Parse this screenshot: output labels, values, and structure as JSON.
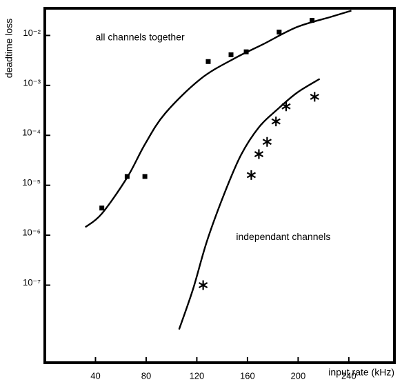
{
  "chart_data": {
    "type": "scatter",
    "y_label": "deadtime loss",
    "x_label": "input  rate (kHz)",
    "xlim": [
      0,
      276
    ],
    "ylim": [
      2.8e-09,
      0.035
    ],
    "y_scale": "log",
    "xticks": [
      40,
      80,
      120,
      160,
      200,
      240
    ],
    "yticks": [
      {
        "value": 0.01,
        "label": "10⁻²"
      },
      {
        "value": 0.001,
        "label": "10⁻³"
      },
      {
        "value": 0.0001,
        "label": "10⁻⁴"
      },
      {
        "value": 1e-05,
        "label": "10⁻⁵"
      },
      {
        "value": 1e-06,
        "label": "10⁻⁶"
      },
      {
        "value": 1e-07,
        "label": "10⁻⁷"
      }
    ],
    "annotations": [
      {
        "text": "all channels together",
        "x": 40,
        "y": 0.009
      },
      {
        "text": "independant channels",
        "x": 151,
        "y": 9e-07
      }
    ],
    "series": [
      {
        "marker": "square",
        "color": "#000000",
        "x": [
          45,
          65,
          79,
          129,
          147,
          159,
          185,
          211
        ],
        "values": [
          3.5e-06,
          1.5e-05,
          1.5e-05,
          0.003,
          0.0041,
          0.0047,
          0.0117,
          0.02
        ]
      },
      {
        "marker": "star",
        "color": "#000000",
        "x": [
          125,
          163,
          169,
          175.5,
          182.5,
          190.5,
          213
        ],
        "values": [
          1e-07,
          1.6e-05,
          4.2e-05,
          7.4e-05,
          0.00019,
          0.00038,
          0.00059
        ]
      },
      {
        "marker": "line",
        "color": "#000000",
        "x": [
          32,
          45,
          65,
          79,
          95,
          123,
          150,
          172,
          199,
          226,
          242
        ],
        "values": [
          1.45e-06,
          2.7e-06,
          1.43e-05,
          6.6e-05,
          0.000275,
          0.00135,
          0.0035,
          0.0066,
          0.0147,
          0.0236,
          0.0314
        ]
      },
      {
        "marker": "line",
        "color": "#000000",
        "x": [
          106,
          117,
          128,
          142,
          155,
          169,
          183,
          199,
          217
        ],
        "values": [
          1.3e-08,
          8.3e-08,
          7.6e-07,
          7.1e-06,
          4.1e-05,
          0.000145,
          0.00032,
          0.00071,
          0.00135
        ]
      }
    ]
  }
}
